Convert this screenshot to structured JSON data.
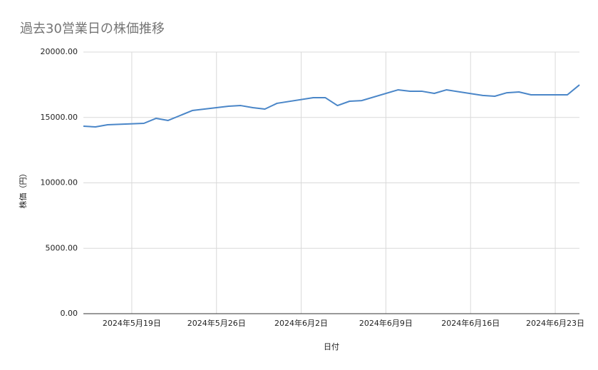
{
  "chart_data": {
    "type": "line",
    "title": "過去30営業日の株価推移",
    "x_label": "日付",
    "y_label": "株価（円）",
    "x": [
      "2024-05-15",
      "2024-05-16",
      "2024-05-17",
      "2024-05-20",
      "2024-05-21",
      "2024-05-22",
      "2024-05-23",
      "2024-05-24",
      "2024-05-27",
      "2024-05-28",
      "2024-05-29",
      "2024-05-30",
      "2024-05-31",
      "2024-06-03",
      "2024-06-04",
      "2024-06-05",
      "2024-06-06",
      "2024-06-07",
      "2024-06-10",
      "2024-06-11",
      "2024-06-12",
      "2024-06-13",
      "2024-06-14",
      "2024-06-17",
      "2024-06-18",
      "2024-06-19",
      "2024-06-20",
      "2024-06-21",
      "2024-06-24",
      "2024-06-25"
    ],
    "series": [
      {
        "name": "株価",
        "color": "#4a86c8",
        "values": [
          14330,
          14280,
          14440,
          14550,
          14930,
          14770,
          15150,
          15530,
          15860,
          15910,
          15750,
          15640,
          16080,
          16510,
          16510,
          15910,
          16240,
          16290,
          17110,
          17000,
          17000,
          16840,
          17110,
          16680,
          16620,
          16890,
          16950,
          16730,
          16730,
          17490
        ]
      }
    ],
    "xlim": [
      "2024-05-15",
      "2024-06-25"
    ],
    "xticks": [
      {
        "value": "2024-05-19",
        "label": "2024年5月19日"
      },
      {
        "value": "2024-05-26",
        "label": "2024年5月26日"
      },
      {
        "value": "2024-06-02",
        "label": "2024年6月2日"
      },
      {
        "value": "2024-06-09",
        "label": "2024年6月9日"
      },
      {
        "value": "2024-06-16",
        "label": "2024年6月16日"
      },
      {
        "value": "2024-06-23",
        "label": "2024年6月23日"
      }
    ],
    "ylim": [
      0,
      20000
    ],
    "yticks": [
      {
        "value": 0,
        "label": "0.00"
      },
      {
        "value": 5000,
        "label": "5000.00"
      },
      {
        "value": 10000,
        "label": "10000.00"
      },
      {
        "value": 15000,
        "label": "15000.00"
      },
      {
        "value": 20000,
        "label": "20000.00"
      }
    ],
    "grid": true
  }
}
